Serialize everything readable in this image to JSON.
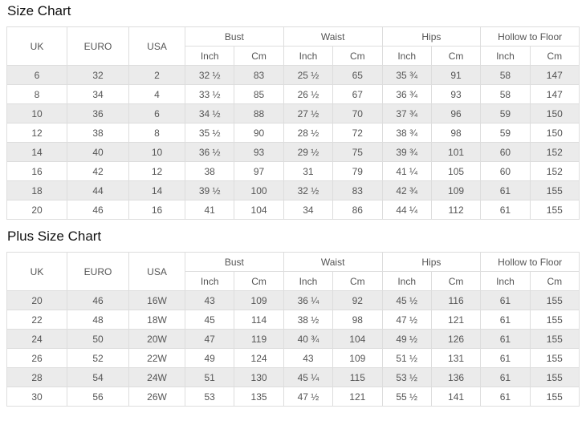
{
  "colors": {
    "row_alt": "#ebebeb",
    "border": "#dddddd",
    "text": "#555555",
    "title": "#111111",
    "background": "#ffffff"
  },
  "chart_data": [
    {
      "type": "table",
      "title": "Size Chart",
      "header": {
        "simple": [
          "UK",
          "EURO",
          "USA"
        ],
        "groups": [
          "Bust",
          "Waist",
          "Hips",
          "Hollow to Floor"
        ],
        "units": [
          "Inch",
          "Cm"
        ]
      },
      "rows": [
        [
          "6",
          "32",
          "2",
          "32 ½",
          "83",
          "25 ½",
          "65",
          "35 ¾",
          "91",
          "58",
          "147"
        ],
        [
          "8",
          "34",
          "4",
          "33 ½",
          "85",
          "26 ½",
          "67",
          "36 ¾",
          "93",
          "58",
          "147"
        ],
        [
          "10",
          "36",
          "6",
          "34 ½",
          "88",
          "27 ½",
          "70",
          "37 ¾",
          "96",
          "59",
          "150"
        ],
        [
          "12",
          "38",
          "8",
          "35 ½",
          "90",
          "28 ½",
          "72",
          "38 ¾",
          "98",
          "59",
          "150"
        ],
        [
          "14",
          "40",
          "10",
          "36 ½",
          "93",
          "29 ½",
          "75",
          "39 ¾",
          "101",
          "60",
          "152"
        ],
        [
          "16",
          "42",
          "12",
          "38",
          "97",
          "31",
          "79",
          "41 ¼",
          "105",
          "60",
          "152"
        ],
        [
          "18",
          "44",
          "14",
          "39 ½",
          "100",
          "32 ½",
          "83",
          "42 ¾",
          "109",
          "61",
          "155"
        ],
        [
          "20",
          "46",
          "16",
          "41",
          "104",
          "34",
          "86",
          "44 ¼",
          "112",
          "61",
          "155"
        ]
      ]
    },
    {
      "type": "table",
      "title": "Plus Size Chart",
      "header": {
        "simple": [
          "UK",
          "EURO",
          "USA"
        ],
        "groups": [
          "Bust",
          "Waist",
          "Hips",
          "Hollow to Floor"
        ],
        "units": [
          "Inch",
          "Cm"
        ]
      },
      "rows": [
        [
          "20",
          "46",
          "16W",
          "43",
          "109",
          "36 ¼",
          "92",
          "45 ½",
          "116",
          "61",
          "155"
        ],
        [
          "22",
          "48",
          "18W",
          "45",
          "114",
          "38 ½",
          "98",
          "47 ½",
          "121",
          "61",
          "155"
        ],
        [
          "24",
          "50",
          "20W",
          "47",
          "119",
          "40 ¾",
          "104",
          "49 ½",
          "126",
          "61",
          "155"
        ],
        [
          "26",
          "52",
          "22W",
          "49",
          "124",
          "43",
          "109",
          "51 ½",
          "131",
          "61",
          "155"
        ],
        [
          "28",
          "54",
          "24W",
          "51",
          "130",
          "45 ¼",
          "115",
          "53 ½",
          "136",
          "61",
          "155"
        ],
        [
          "30",
          "56",
          "26W",
          "53",
          "135",
          "47 ½",
          "121",
          "55 ½",
          "141",
          "61",
          "155"
        ]
      ]
    }
  ]
}
